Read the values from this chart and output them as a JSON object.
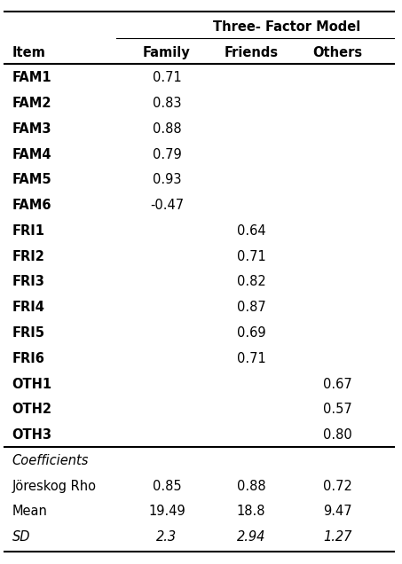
{
  "title_row1": "Three- Factor Model",
  "header_items": [
    "Item",
    "Family",
    "Friends",
    "Others"
  ],
  "rows": [
    [
      "FAM1",
      "0.71",
      "",
      ""
    ],
    [
      "FAM2",
      "0.83",
      "",
      ""
    ],
    [
      "FAM3",
      "0.88",
      "",
      ""
    ],
    [
      "FAM4",
      "0.79",
      "",
      ""
    ],
    [
      "FAM5",
      "0.93",
      "",
      ""
    ],
    [
      "FAM6",
      "-0.47",
      "",
      ""
    ],
    [
      "FRI1",
      "",
      "0.64",
      ""
    ],
    [
      "FRI2",
      "",
      "0.71",
      ""
    ],
    [
      "FRI3",
      "",
      "0.82",
      ""
    ],
    [
      "FRI4",
      "",
      "0.87",
      ""
    ],
    [
      "FRI5",
      "",
      "0.69",
      ""
    ],
    [
      "FRI6",
      "",
      "0.71",
      ""
    ],
    [
      "OTH1",
      "",
      "",
      "0.67"
    ],
    [
      "OTH2",
      "",
      "",
      "0.57"
    ],
    [
      "OTH3",
      "",
      "",
      "0.80"
    ]
  ],
  "coeff_label": "Coefficients",
  "coeff_rows": [
    [
      "Jöreskog Rho",
      "0.85",
      "0.88",
      "0.72"
    ],
    [
      "Mean",
      "19.49",
      "18.8",
      "9.47"
    ],
    [
      "SD",
      "2.3",
      "2.94",
      "1.27"
    ]
  ],
  "coeff_italic": [
    false,
    false,
    true
  ],
  "bg_color": "#ffffff",
  "text_color": "#000000",
  "font_size": 10.5,
  "figsize": [
    4.53,
    6.36
  ],
  "dpi": 100
}
